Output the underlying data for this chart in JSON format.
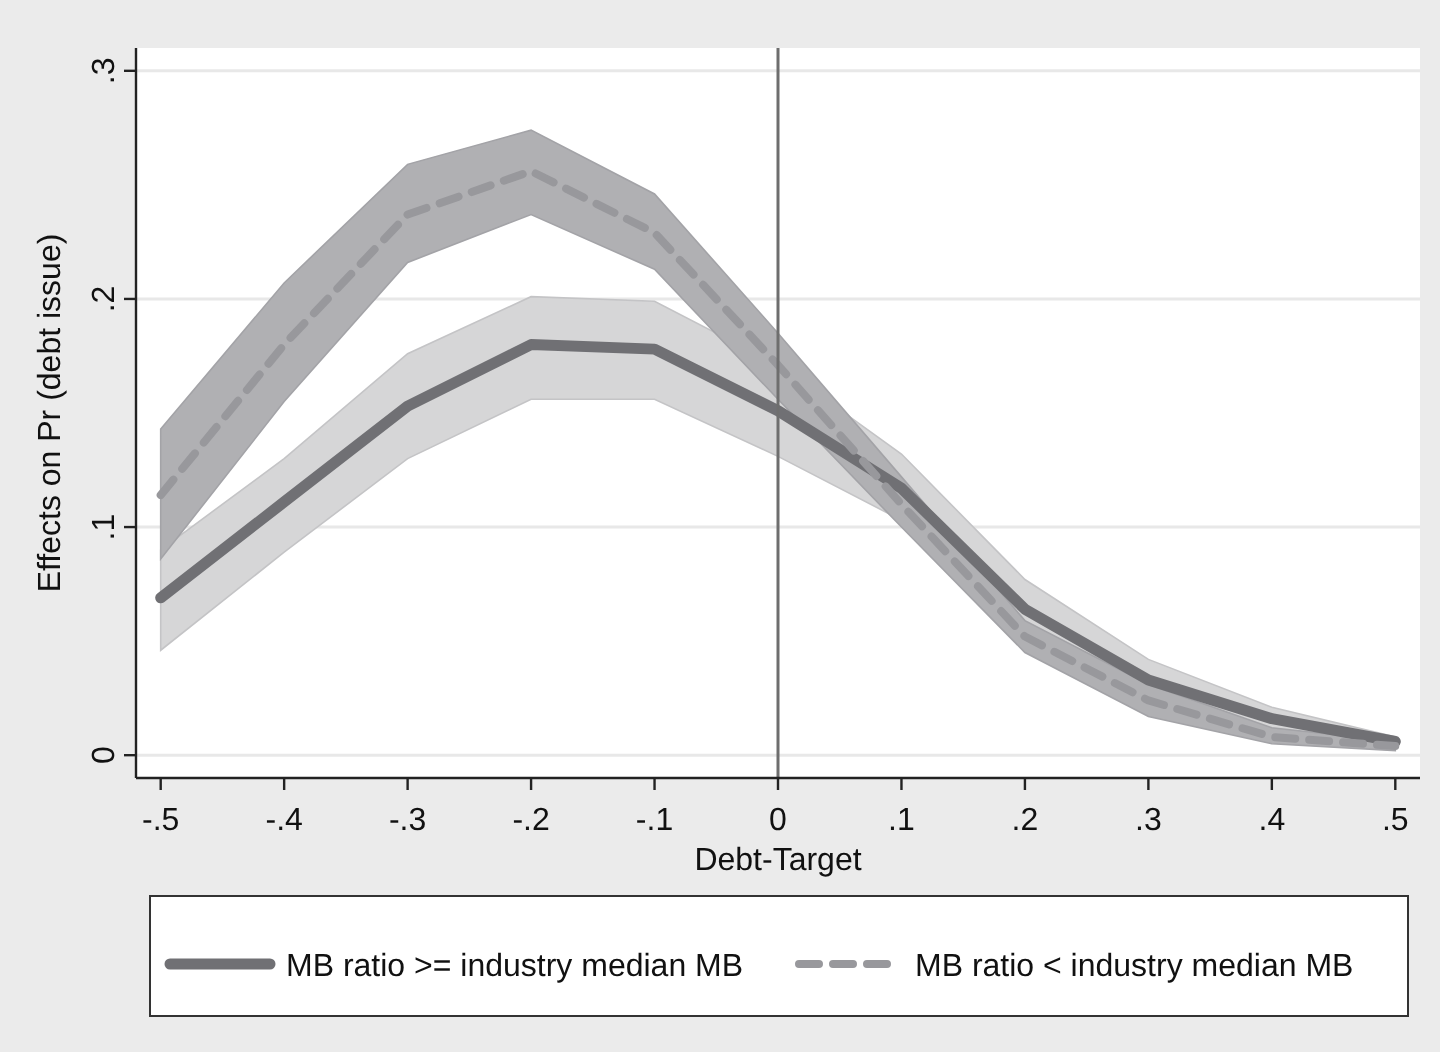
{
  "chart_data": {
    "type": "line",
    "xlabel": "Debt-Target",
    "ylabel": "Effects on Pr (debt issue)",
    "x": [
      -0.5,
      -0.4,
      -0.3,
      -0.2,
      -0.1,
      0,
      0.1,
      0.2,
      0.3,
      0.4,
      0.5
    ],
    "series": [
      {
        "name": "MB ratio >= industry median MB",
        "color": "#707074",
        "line_style": "solid",
        "values": [
          0.069,
          0.111,
          0.153,
          0.18,
          0.178,
          0.151,
          0.117,
          0.064,
          0.033,
          0.016,
          0.006
        ],
        "lower": [
          0.046,
          0.089,
          0.13,
          0.156,
          0.156,
          0.131,
          0.103,
          0.054,
          0.026,
          0.011,
          0.004
        ],
        "upper": [
          0.09,
          0.13,
          0.176,
          0.201,
          0.199,
          0.171,
          0.132,
          0.077,
          0.042,
          0.021,
          0.008
        ]
      },
      {
        "name": "MB ratio < industry median MB",
        "color": "#98989c",
        "line_style": "dashed",
        "values": [
          0.114,
          0.18,
          0.237,
          0.256,
          0.229,
          0.171,
          0.11,
          0.052,
          0.024,
          0.008,
          0.004
        ],
        "lower": [
          0.086,
          0.155,
          0.216,
          0.237,
          0.213,
          0.156,
          0.1,
          0.045,
          0.017,
          0.005,
          0.002
        ],
        "upper": [
          0.143,
          0.207,
          0.259,
          0.274,
          0.246,
          0.185,
          0.122,
          0.059,
          0.031,
          0.012,
          0.006
        ]
      }
    ],
    "xlim": [
      -0.52,
      0.52
    ],
    "ylim": [
      -0.01,
      0.31
    ],
    "xticks": [
      {
        "value": -0.5,
        "label": "-.5"
      },
      {
        "value": -0.4,
        "label": "-.4"
      },
      {
        "value": -0.3,
        "label": "-.3"
      },
      {
        "value": -0.2,
        "label": "-.2"
      },
      {
        "value": -0.1,
        "label": "-.1"
      },
      0,
      {
        "value": 0.1,
        "label": ".1"
      },
      {
        "value": 0.2,
        "label": ".2"
      },
      {
        "value": 0.3,
        "label": ".3"
      },
      {
        "value": 0.4,
        "label": ".4"
      },
      {
        "value": 0.5,
        "label": ".5"
      }
    ],
    "yticks": [
      0,
      {
        "value": 0.1,
        "label": ".1"
      },
      {
        "value": 0.2,
        "label": ".2"
      },
      {
        "value": 0.3,
        "label": ".3"
      }
    ],
    "ref_lines": [
      {
        "axis": "x",
        "value": 0,
        "color": "#6e6e6e"
      }
    ],
    "grid": "y",
    "legend": "bottom"
  }
}
